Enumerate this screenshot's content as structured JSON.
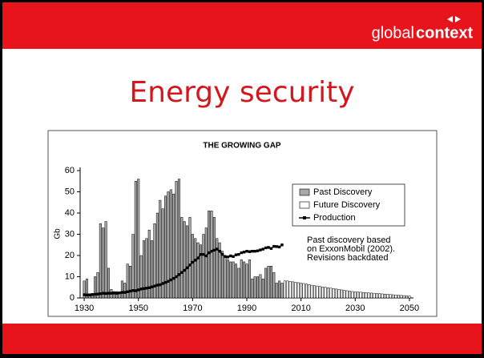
{
  "slide": {
    "logo_light": "global",
    "logo_bold": "context",
    "title": "Energy security"
  },
  "chart_data": {
    "type": "bar",
    "title": "THE GROWING GAP",
    "ylabel": "Gb",
    "annotation": [
      "Past discovery based",
      "on ExxonMobil (2002).",
      "Revisions backdated"
    ],
    "xlim": [
      1928.5,
      2051.5
    ],
    "xticks": [
      1930,
      1950,
      1970,
      1990,
      2010,
      2030,
      2050
    ],
    "ylim": [
      0,
      60
    ],
    "yticks": [
      0,
      10,
      20,
      30,
      40,
      50,
      60
    ],
    "x": [
      1930,
      1931,
      1932,
      1933,
      1934,
      1935,
      1936,
      1937,
      1938,
      1939,
      1940,
      1941,
      1942,
      1943,
      1944,
      1945,
      1946,
      1947,
      1948,
      1949,
      1950,
      1951,
      1952,
      1953,
      1954,
      1955,
      1956,
      1957,
      1958,
      1959,
      1960,
      1961,
      1962,
      1963,
      1964,
      1965,
      1966,
      1967,
      1968,
      1969,
      1970,
      1971,
      1972,
      1973,
      1974,
      1975,
      1976,
      1977,
      1978,
      1979,
      1980,
      1981,
      1982,
      1983,
      1984,
      1985,
      1986,
      1987,
      1988,
      1989,
      1990,
      1991,
      1992,
      1993,
      1994,
      1995,
      1996,
      1997,
      1998,
      1999,
      2000,
      2001,
      2002,
      2003,
      2004,
      2005,
      2006,
      2007,
      2008,
      2009,
      2010,
      2011,
      2012,
      2013,
      2014,
      2015,
      2016,
      2017,
      2018,
      2019,
      2020,
      2021,
      2022,
      2023,
      2024,
      2025,
      2026,
      2027,
      2028,
      2029,
      2030,
      2031,
      2032,
      2033,
      2034,
      2035,
      2036,
      2037,
      2038,
      2039,
      2040,
      2041,
      2042,
      2043,
      2044,
      2045,
      2046,
      2047,
      2048,
      2049,
      2050
    ],
    "legend": "upper right",
    "series": [
      {
        "name": "Past Discovery",
        "kind": "bar",
        "color": "#a8a8a8",
        "values": [
          8,
          9,
          2,
          2,
          10,
          12,
          35,
          33,
          36,
          14,
          4,
          3,
          3,
          2,
          8,
          7,
          16,
          15,
          30,
          55,
          56,
          20,
          27,
          28,
          32,
          27,
          35,
          40,
          46,
          42,
          48,
          50,
          51,
          49,
          55,
          56,
          38,
          36,
          34,
          38,
          30,
          28,
          26,
          25,
          30,
          33,
          41,
          41,
          38,
          28,
          26,
          22,
          20,
          18,
          17,
          17,
          16,
          14,
          18,
          17,
          16,
          18,
          9,
          10,
          10,
          11,
          9,
          14,
          15,
          15,
          12,
          7,
          8,
          7,
          null,
          null,
          null,
          null,
          null,
          null,
          null,
          null,
          null,
          null,
          null,
          null,
          null,
          null,
          null,
          null,
          null,
          null,
          null,
          null,
          null,
          null,
          null,
          null,
          null,
          null,
          null,
          null,
          null,
          null,
          null,
          null,
          null,
          null,
          null,
          null,
          null,
          null,
          null,
          null,
          null,
          null,
          null,
          null,
          null,
          null,
          null
        ]
      },
      {
        "name": "Future Discovery",
        "kind": "bar",
        "color": "#ffffff",
        "values": [
          null,
          null,
          null,
          null,
          null,
          null,
          null,
          null,
          null,
          null,
          null,
          null,
          null,
          null,
          null,
          null,
          null,
          null,
          null,
          null,
          null,
          null,
          null,
          null,
          null,
          null,
          null,
          null,
          null,
          null,
          null,
          null,
          null,
          null,
          null,
          null,
          null,
          null,
          null,
          null,
          null,
          null,
          null,
          null,
          null,
          null,
          null,
          null,
          null,
          null,
          null,
          null,
          null,
          null,
          null,
          null,
          null,
          null,
          null,
          null,
          null,
          null,
          null,
          null,
          null,
          null,
          null,
          null,
          null,
          null,
          null,
          null,
          null,
          null,
          8,
          8,
          7.8,
          7.6,
          7.4,
          7.2,
          7,
          6.8,
          6.5,
          6.3,
          6,
          5.8,
          5.6,
          5.4,
          5.2,
          5,
          4.8,
          4.6,
          4.4,
          4.2,
          4,
          3.8,
          3.6,
          3.4,
          3.2,
          3,
          2.9,
          2.8,
          2.7,
          2.6,
          2.5,
          2.4,
          2.3,
          2.2,
          2.1,
          2,
          1.9,
          1.8,
          1.7,
          1.6,
          1.5,
          1.4,
          1.3,
          1.2,
          1.1,
          1,
          0.9
        ]
      },
      {
        "name": "Production",
        "kind": "line",
        "color": "#000000",
        "values": [
          1.5,
          1.4,
          1.4,
          1.6,
          1.7,
          1.8,
          2,
          2.2,
          2.1,
          2.2,
          2.2,
          2.3,
          2.2,
          2.4,
          2.6,
          2.6,
          2.9,
          3.2,
          3.5,
          3.4,
          3.8,
          4.2,
          4.4,
          4.6,
          4.8,
          5.2,
          5.6,
          6,
          6.2,
          6.8,
          7.3,
          7.8,
          8.5,
          9.2,
          10,
          11,
          12,
          13,
          14.2,
          15.5,
          16.8,
          17.8,
          18.8,
          20.5,
          20.5,
          19.8,
          21.3,
          22,
          22.5,
          23,
          22,
          20.5,
          19.5,
          19.3,
          19.8,
          19.5,
          20.3,
          20.5,
          21.3,
          21.6,
          22,
          21.8,
          22,
          22,
          22.2,
          22.6,
          23,
          23.6,
          23.8,
          23.3,
          24.3,
          24.2,
          24,
          25,
          null,
          null,
          null,
          null,
          null,
          null,
          null,
          null,
          null,
          null,
          null,
          null,
          null,
          null,
          null,
          null,
          null,
          null,
          null,
          null,
          null,
          null,
          null,
          null,
          null,
          null,
          null,
          null,
          null,
          null,
          null,
          null,
          null,
          null,
          null,
          null,
          null,
          null,
          null,
          null,
          null,
          null,
          null,
          null,
          null,
          null,
          null
        ]
      }
    ]
  }
}
